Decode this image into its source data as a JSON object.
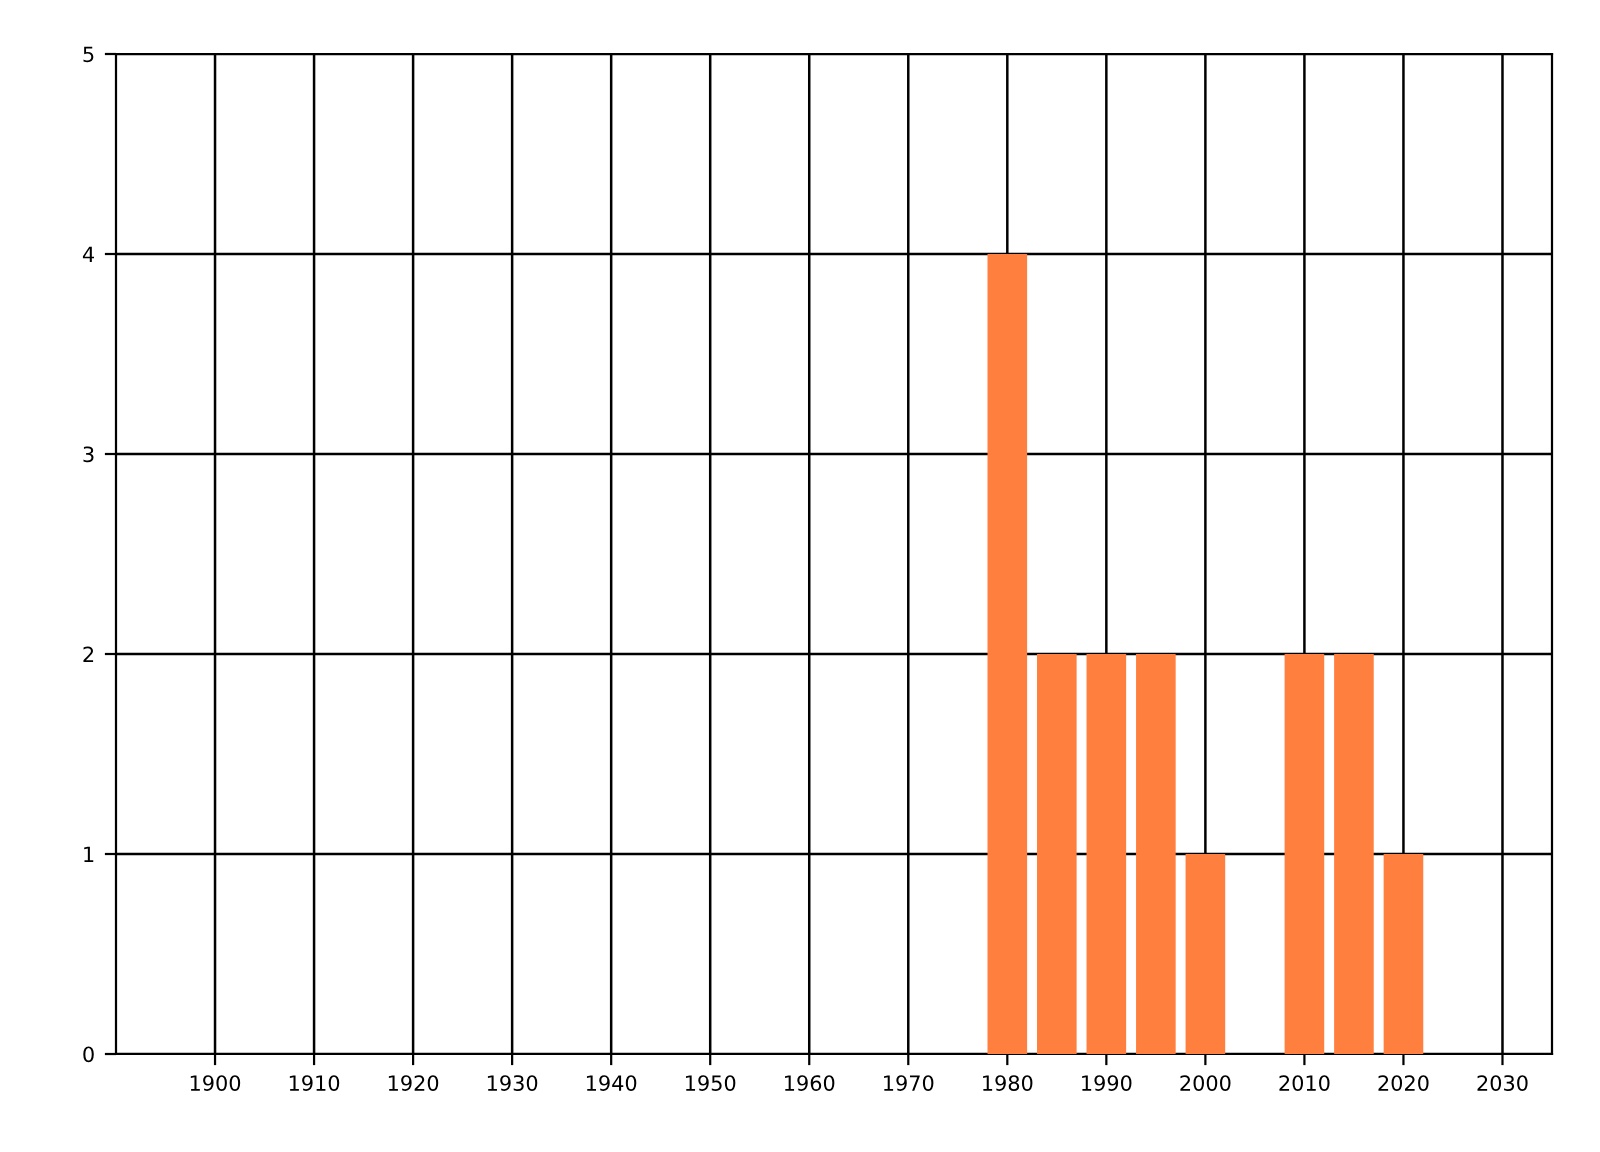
{
  "chart_data": {
    "type": "bar",
    "x": [
      1980,
      1985,
      1990,
      1995,
      2000,
      2010,
      2015,
      2020
    ],
    "values": [
      4,
      2,
      2,
      2,
      1,
      2,
      2,
      1
    ],
    "color": "#ff7f3f",
    "xlim": [
      1890,
      2035
    ],
    "xticks": [
      1900,
      1910,
      1920,
      1930,
      1940,
      1950,
      1960,
      1970,
      1980,
      1990,
      2000,
      2010,
      2020,
      2030
    ],
    "ylim": [
      0,
      5
    ],
    "yticks": [
      0,
      1,
      2,
      3,
      4,
      5
    ],
    "grid": true
  }
}
